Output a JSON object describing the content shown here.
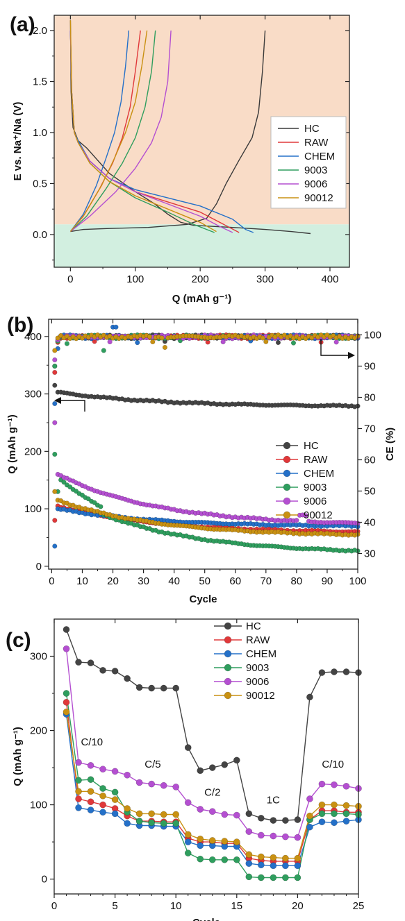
{
  "chart_data": [
    {
      "panel": "(a)",
      "type": "line",
      "xlabel": "Q (mAh g⁻¹)",
      "ylabel": "E vs. Na⁺/Na (V)",
      "xlim": [
        -25,
        430
      ],
      "ylim": [
        -0.32,
        2.15
      ],
      "xticks": [
        0,
        100,
        200,
        300,
        400
      ],
      "yticks": [
        0.0,
        0.5,
        1.0,
        1.5,
        2.0
      ],
      "background_bands": [
        {
          "from": 0.1,
          "to": 2.15,
          "color": "#f9dcc7"
        },
        {
          "from": -0.32,
          "to": 0.1,
          "color": "#d2efe0"
        }
      ],
      "legend": "center-right",
      "series": [
        {
          "name": "HC",
          "color": "#3a3a3a",
          "discharge": [
            [
              0,
              2.1
            ],
            [
              1,
              1.4
            ],
            [
              4,
              1.05
            ],
            [
              12,
              0.92
            ],
            [
              25,
              0.85
            ],
            [
              60,
              0.6
            ],
            [
              100,
              0.42
            ],
            [
              130,
              0.3
            ],
            [
              150,
              0.2
            ],
            [
              170,
              0.12
            ],
            [
              190,
              0.09
            ],
            [
              250,
              0.07
            ],
            [
              300,
              0.05
            ],
            [
              340,
              0.03
            ],
            [
              370,
              0.01
            ]
          ],
          "charge": [
            [
              0,
              0.03
            ],
            [
              20,
              0.05
            ],
            [
              60,
              0.06
            ],
            [
              120,
              0.07
            ],
            [
              180,
              0.1
            ],
            [
              210,
              0.16
            ],
            [
              225,
              0.3
            ],
            [
              240,
              0.5
            ],
            [
              260,
              0.73
            ],
            [
              280,
              0.95
            ],
            [
              290,
              1.2
            ],
            [
              296,
              1.6
            ],
            [
              300,
              2.0
            ]
          ]
        },
        {
          "name": "RAW",
          "color": "#e0383a",
          "discharge": [
            [
              0,
              2.0
            ],
            [
              2,
              1.4
            ],
            [
              6,
              1.0
            ],
            [
              12,
              0.9
            ],
            [
              30,
              0.72
            ],
            [
              60,
              0.55
            ],
            [
              100,
              0.42
            ],
            [
              150,
              0.32
            ],
            [
              200,
              0.22
            ],
            [
              230,
              0.12
            ],
            [
              260,
              0.02
            ]
          ],
          "charge": [
            [
              0,
              0.03
            ],
            [
              20,
              0.18
            ],
            [
              45,
              0.45
            ],
            [
              65,
              0.7
            ],
            [
              80,
              0.95
            ],
            [
              92,
              1.25
            ],
            [
              100,
              1.6
            ],
            [
              108,
              2.0
            ]
          ]
        },
        {
          "name": "CHEM",
          "color": "#2470c8",
          "discharge": [
            [
              0,
              2.0
            ],
            [
              2,
              1.4
            ],
            [
              6,
              1.0
            ],
            [
              12,
              0.92
            ],
            [
              30,
              0.72
            ],
            [
              60,
              0.55
            ],
            [
              100,
              0.44
            ],
            [
              150,
              0.36
            ],
            [
              200,
              0.28
            ],
            [
              250,
              0.15
            ],
            [
              270,
              0.05
            ],
            [
              282,
              0.02
            ]
          ],
          "charge": [
            [
              0,
              0.03
            ],
            [
              20,
              0.2
            ],
            [
              40,
              0.48
            ],
            [
              55,
              0.75
            ],
            [
              68,
              1.0
            ],
            [
              78,
              1.3
            ],
            [
              85,
              1.65
            ],
            [
              90,
              2.0
            ]
          ]
        },
        {
          "name": "9003",
          "color": "#2f9e5e",
          "discharge": [
            [
              0,
              2.0
            ],
            [
              2,
              1.4
            ],
            [
              6,
              1.0
            ],
            [
              12,
              0.9
            ],
            [
              30,
              0.7
            ],
            [
              60,
              0.52
            ],
            [
              100,
              0.36
            ],
            [
              150,
              0.22
            ],
            [
              190,
              0.1
            ],
            [
              222,
              0.02
            ]
          ],
          "charge": [
            [
              0,
              0.03
            ],
            [
              25,
              0.18
            ],
            [
              55,
              0.45
            ],
            [
              80,
              0.7
            ],
            [
              100,
              0.95
            ],
            [
              115,
              1.25
            ],
            [
              125,
              1.6
            ],
            [
              131,
              2.0
            ]
          ]
        },
        {
          "name": "9006",
          "color": "#b44fd1",
          "discharge": [
            [
              0,
              2.0
            ],
            [
              2,
              1.4
            ],
            [
              6,
              1.0
            ],
            [
              12,
              0.9
            ],
            [
              30,
              0.72
            ],
            [
              60,
              0.55
            ],
            [
              100,
              0.42
            ],
            [
              150,
              0.3
            ],
            [
              200,
              0.18
            ],
            [
              230,
              0.08
            ],
            [
              250,
              0.02
            ]
          ],
          "charge": [
            [
              0,
              0.03
            ],
            [
              30,
              0.18
            ],
            [
              70,
              0.42
            ],
            [
              100,
              0.65
            ],
            [
              125,
              0.9
            ],
            [
              140,
              1.15
            ],
            [
              150,
              1.5
            ],
            [
              155,
              2.0
            ]
          ]
        },
        {
          "name": "90012",
          "color": "#c99112",
          "discharge": [
            [
              0,
              2.1
            ],
            [
              2,
              1.4
            ],
            [
              6,
              1.0
            ],
            [
              12,
              0.9
            ],
            [
              30,
              0.7
            ],
            [
              60,
              0.52
            ],
            [
              100,
              0.38
            ],
            [
              150,
              0.25
            ],
            [
              200,
              0.12
            ],
            [
              225,
              0.03
            ]
          ],
          "charge": [
            [
              0,
              0.03
            ],
            [
              22,
              0.2
            ],
            [
              48,
              0.48
            ],
            [
              68,
              0.75
            ],
            [
              85,
              1.0
            ],
            [
              100,
              1.3
            ],
            [
              110,
              1.65
            ],
            [
              118,
              2.0
            ]
          ]
        }
      ]
    },
    {
      "panel": "(b)",
      "type": "scatter",
      "xlabel": "Cycle",
      "ylabel": "Q (mAh g⁻¹)",
      "ylabel_right": "CE (%)",
      "xlim": [
        -1,
        100
      ],
      "ylim": [
        -5,
        430
      ],
      "ylim_right": [
        25,
        105
      ],
      "xticks": [
        0,
        10,
        20,
        30,
        40,
        50,
        60,
        70,
        80,
        90,
        100
      ],
      "yticks": [
        0,
        100,
        200,
        300,
        400
      ],
      "yticks_right": [
        30,
        40,
        50,
        60,
        70,
        80,
        90,
        100
      ],
      "legend": "center-right",
      "series": [
        {
          "name": "HC",
          "color": "#444444",
          "capacity_start": [
            315,
            303
          ],
          "capacity_end": 279,
          "ce_first": 90,
          "ce_avg": 99.8
        },
        {
          "name": "RAW",
          "color": "#e0383a",
          "capacity_start": [
            80,
            105
          ],
          "capacity_end": 60,
          "ce_first": 88,
          "ce_avg": 99.7
        },
        {
          "name": "CHEM",
          "color": "#2470c8",
          "capacity_start": [
            35,
            100
          ],
          "capacity_end": 70,
          "ce_first": 78,
          "ce_avg": 99.8
        },
        {
          "name": "9003",
          "color": "#2f9e5e",
          "capacity_start": [
            195,
            130
          ],
          "capacity_end": 27,
          "ce_first": 90,
          "ce_avg": 99.6
        },
        {
          "name": "9006",
          "color": "#b44fd1",
          "capacity_start": [
            250,
            160
          ],
          "capacity_end": 75,
          "ce_first": 92,
          "ce_avg": 99.7
        },
        {
          "name": "90012",
          "color": "#c99112",
          "capacity_start": [
            130,
            115
          ],
          "capacity_end": 55,
          "ce_first": 95,
          "ce_avg": 99.8
        }
      ]
    },
    {
      "panel": "(c)",
      "type": "line",
      "xlabel": "Cycle",
      "ylabel": "Q (mAh g⁻¹)",
      "xlim": [
        0,
        25
      ],
      "ylim": [
        -20,
        350
      ],
      "xticks": [
        0,
        5,
        10,
        15,
        20,
        25
      ],
      "yticks": [
        0,
        100,
        200,
        300
      ],
      "legend": "top-right",
      "x": [
        1,
        2,
        3,
        4,
        5,
        6,
        7,
        8,
        9,
        10,
        11,
        12,
        13,
        14,
        15,
        16,
        17,
        18,
        19,
        20,
        21,
        22,
        23,
        24,
        25
      ],
      "annotations": [
        {
          "text": "C/10",
          "x": 3.1,
          "y": 180
        },
        {
          "text": "C/5",
          "x": 8.1,
          "y": 150
        },
        {
          "text": "C/2",
          "x": 13.0,
          "y": 112
        },
        {
          "text": "1C",
          "x": 18.0,
          "y": 102
        },
        {
          "text": "C/10",
          "x": 22.9,
          "y": 150
        }
      ],
      "series": [
        {
          "name": "HC",
          "color": "#444444",
          "values": [
            336,
            292,
            291,
            281,
            280,
            270,
            258,
            257,
            257,
            257,
            177,
            146,
            150,
            154,
            160,
            88,
            82,
            79,
            79,
            80,
            245,
            278,
            279,
            279,
            278
          ]
        },
        {
          "name": "RAW",
          "color": "#e0383a",
          "values": [
            238,
            108,
            104,
            100,
            95,
            85,
            78,
            78,
            77,
            77,
            55,
            50,
            50,
            48,
            48,
            28,
            25,
            24,
            24,
            24,
            80,
            92,
            92,
            90,
            90
          ]
        },
        {
          "name": "CHEM",
          "color": "#2470c8",
          "values": [
            222,
            96,
            93,
            90,
            88,
            75,
            72,
            72,
            71,
            71,
            50,
            45,
            45,
            44,
            44,
            21,
            19,
            18,
            18,
            18,
            70,
            77,
            76,
            78,
            80
          ]
        },
        {
          "name": "9003",
          "color": "#2f9e5e",
          "values": [
            250,
            133,
            134,
            122,
            117,
            90,
            78,
            76,
            75,
            75,
            35,
            27,
            26,
            26,
            26,
            3,
            2,
            2,
            2,
            2,
            80,
            88,
            88,
            88,
            87
          ]
        },
        {
          "name": "9006",
          "color": "#b44fd1",
          "values": [
            310,
            157,
            153,
            148,
            145,
            140,
            130,
            128,
            126,
            124,
            103,
            94,
            91,
            87,
            86,
            64,
            59,
            58,
            57,
            56,
            108,
            128,
            127,
            125,
            122
          ]
        },
        {
          "name": "90012",
          "color": "#c99112",
          "values": [
            225,
            118,
            118,
            112,
            107,
            95,
            88,
            88,
            87,
            87,
            60,
            54,
            52,
            51,
            50,
            33,
            30,
            29,
            28,
            28,
            85,
            100,
            100,
            99,
            98
          ]
        }
      ]
    }
  ]
}
